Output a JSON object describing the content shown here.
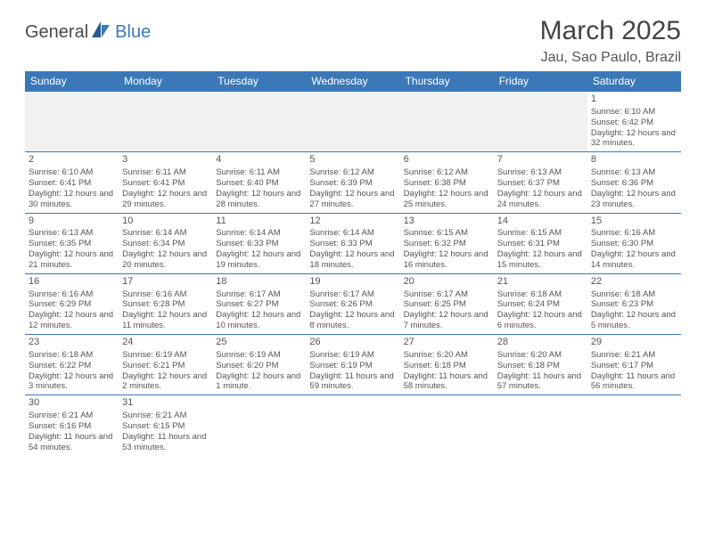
{
  "logo": {
    "general": "General",
    "blue": "Blue"
  },
  "title": "March 2025",
  "location": "Jau, Sao Paulo, Brazil",
  "colors": {
    "header_bg": "#3b78b8",
    "header_fg": "#ffffff",
    "border": "#3b78b8",
    "text": "#555555",
    "page_bg": "#ffffff",
    "empty_bg": "#f1f1f1"
  },
  "columns": [
    "Sunday",
    "Monday",
    "Tuesday",
    "Wednesday",
    "Thursday",
    "Friday",
    "Saturday"
  ],
  "weeks": [
    [
      null,
      null,
      null,
      null,
      null,
      null,
      {
        "n": "1",
        "sr": "6:10 AM",
        "ss": "6:42 PM",
        "dl": "12 hours and 32 minutes."
      }
    ],
    [
      {
        "n": "2",
        "sr": "6:10 AM",
        "ss": "6:41 PM",
        "dl": "12 hours and 30 minutes."
      },
      {
        "n": "3",
        "sr": "6:11 AM",
        "ss": "6:41 PM",
        "dl": "12 hours and 29 minutes."
      },
      {
        "n": "4",
        "sr": "6:11 AM",
        "ss": "6:40 PM",
        "dl": "12 hours and 28 minutes."
      },
      {
        "n": "5",
        "sr": "6:12 AM",
        "ss": "6:39 PM",
        "dl": "12 hours and 27 minutes."
      },
      {
        "n": "6",
        "sr": "6:12 AM",
        "ss": "6:38 PM",
        "dl": "12 hours and 25 minutes."
      },
      {
        "n": "7",
        "sr": "6:13 AM",
        "ss": "6:37 PM",
        "dl": "12 hours and 24 minutes."
      },
      {
        "n": "8",
        "sr": "6:13 AM",
        "ss": "6:36 PM",
        "dl": "12 hours and 23 minutes."
      }
    ],
    [
      {
        "n": "9",
        "sr": "6:13 AM",
        "ss": "6:35 PM",
        "dl": "12 hours and 21 minutes."
      },
      {
        "n": "10",
        "sr": "6:14 AM",
        "ss": "6:34 PM",
        "dl": "12 hours and 20 minutes."
      },
      {
        "n": "11",
        "sr": "6:14 AM",
        "ss": "6:33 PM",
        "dl": "12 hours and 19 minutes."
      },
      {
        "n": "12",
        "sr": "6:14 AM",
        "ss": "6:33 PM",
        "dl": "12 hours and 18 minutes."
      },
      {
        "n": "13",
        "sr": "6:15 AM",
        "ss": "6:32 PM",
        "dl": "12 hours and 16 minutes."
      },
      {
        "n": "14",
        "sr": "6:15 AM",
        "ss": "6:31 PM",
        "dl": "12 hours and 15 minutes."
      },
      {
        "n": "15",
        "sr": "6:16 AM",
        "ss": "6:30 PM",
        "dl": "12 hours and 14 minutes."
      }
    ],
    [
      {
        "n": "16",
        "sr": "6:16 AM",
        "ss": "6:29 PM",
        "dl": "12 hours and 12 minutes."
      },
      {
        "n": "17",
        "sr": "6:16 AM",
        "ss": "6:28 PM",
        "dl": "12 hours and 11 minutes."
      },
      {
        "n": "18",
        "sr": "6:17 AM",
        "ss": "6:27 PM",
        "dl": "12 hours and 10 minutes."
      },
      {
        "n": "19",
        "sr": "6:17 AM",
        "ss": "6:26 PM",
        "dl": "12 hours and 8 minutes."
      },
      {
        "n": "20",
        "sr": "6:17 AM",
        "ss": "6:25 PM",
        "dl": "12 hours and 7 minutes."
      },
      {
        "n": "21",
        "sr": "6:18 AM",
        "ss": "6:24 PM",
        "dl": "12 hours and 6 minutes."
      },
      {
        "n": "22",
        "sr": "6:18 AM",
        "ss": "6:23 PM",
        "dl": "12 hours and 5 minutes."
      }
    ],
    [
      {
        "n": "23",
        "sr": "6:18 AM",
        "ss": "6:22 PM",
        "dl": "12 hours and 3 minutes."
      },
      {
        "n": "24",
        "sr": "6:19 AM",
        "ss": "6:21 PM",
        "dl": "12 hours and 2 minutes."
      },
      {
        "n": "25",
        "sr": "6:19 AM",
        "ss": "6:20 PM",
        "dl": "12 hours and 1 minute."
      },
      {
        "n": "26",
        "sr": "6:19 AM",
        "ss": "6:19 PM",
        "dl": "11 hours and 59 minutes."
      },
      {
        "n": "27",
        "sr": "6:20 AM",
        "ss": "6:18 PM",
        "dl": "11 hours and 58 minutes."
      },
      {
        "n": "28",
        "sr": "6:20 AM",
        "ss": "6:18 PM",
        "dl": "11 hours and 57 minutes."
      },
      {
        "n": "29",
        "sr": "6:21 AM",
        "ss": "6:17 PM",
        "dl": "11 hours and 56 minutes."
      }
    ],
    [
      {
        "n": "30",
        "sr": "6:21 AM",
        "ss": "6:16 PM",
        "dl": "11 hours and 54 minutes."
      },
      {
        "n": "31",
        "sr": "6:21 AM",
        "ss": "6:15 PM",
        "dl": "11 hours and 53 minutes."
      },
      null,
      null,
      null,
      null,
      null
    ]
  ],
  "labels": {
    "sunrise": "Sunrise:",
    "sunset": "Sunset:",
    "daylight": "Daylight:"
  }
}
